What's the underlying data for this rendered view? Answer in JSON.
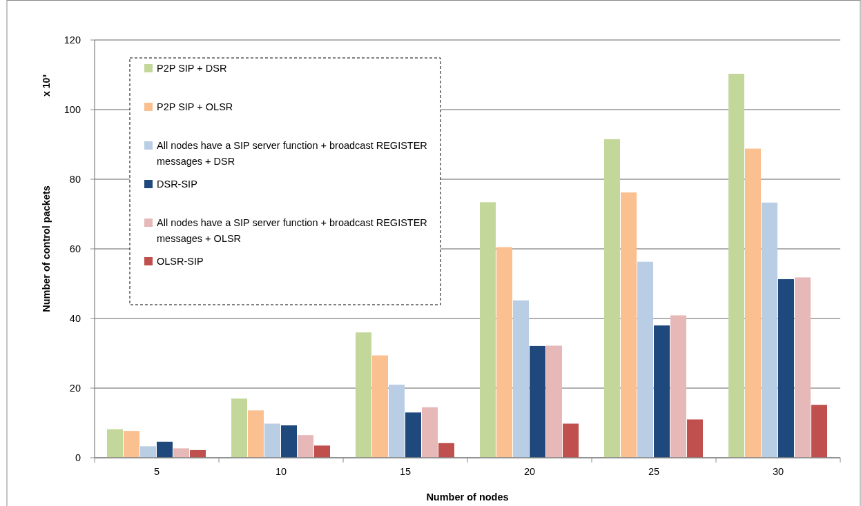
{
  "chart_data": {
    "type": "bar",
    "xlabel": "Number of nodes",
    "ylabel": "Number of control packets",
    "annotations": [
      "x 10³"
    ],
    "categories": [
      "5",
      "10",
      "15",
      "20",
      "25",
      "30"
    ],
    "series": [
      {
        "name": "P2P SIP + DSR",
        "color": "#c4d79b",
        "values": [
          8.2,
          17,
          36,
          73.4,
          91.5,
          110.3
        ]
      },
      {
        "name": "P2P SIP + OLSR",
        "color": "#fac090",
        "values": [
          7.7,
          13.6,
          29.4,
          60.5,
          76.2,
          88.8
        ]
      },
      {
        "name": "All nodes have a SIP server function + broadcast REGISTER messages + DSR",
        "color": "#b9cde5",
        "values": [
          3.3,
          9.8,
          21,
          45.2,
          56.3,
          73.3
        ]
      },
      {
        "name": "DSR-SIP",
        "color": "#1f497d",
        "values": [
          4.6,
          9.3,
          13,
          32.1,
          38,
          51.3
        ]
      },
      {
        "name": "All nodes have a SIP server function + broadcast REGISTER messages + OLSR",
        "color": "#e6b9b8",
        "values": [
          2.7,
          6.5,
          14.5,
          32.2,
          40.9,
          51.8
        ]
      },
      {
        "name": "OLSR-SIP",
        "color": "#c0504d",
        "values": [
          2.2,
          3.5,
          4.2,
          9.8,
          11,
          15.2
        ]
      }
    ],
    "ylim": [
      0,
      120
    ],
    "yticks": [
      0,
      20,
      40,
      60,
      80,
      100,
      120
    ],
    "grid": "y",
    "legend": "top left"
  }
}
